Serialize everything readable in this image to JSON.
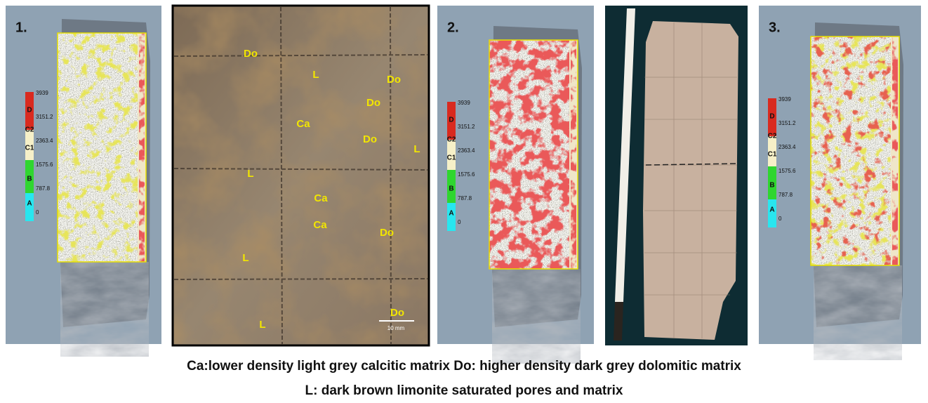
{
  "panels": [
    {
      "label": "1."
    },
    {
      "label": "2."
    },
    {
      "label": "3."
    }
  ],
  "legend": {
    "classes": [
      "D",
      "C2",
      "C1",
      "B",
      "A"
    ],
    "values": [
      3939,
      3151.2,
      2363.4,
      1575.6,
      787.8,
      0
    ]
  },
  "photo": {
    "annotations": [
      "Do",
      "L",
      "Do",
      "Do",
      "Ca",
      "Do",
      "L",
      "L",
      "Ca",
      "Ca",
      "Do",
      "L",
      "Do",
      "L"
    ],
    "scale_bar": "10 mm"
  },
  "caption": {
    "line1": "Ca:lower density light grey calcitic matrix   Do: higher density dark grey dolomitic matrix",
    "line2": "L: dark brown limonite saturated pores and matrix"
  }
}
